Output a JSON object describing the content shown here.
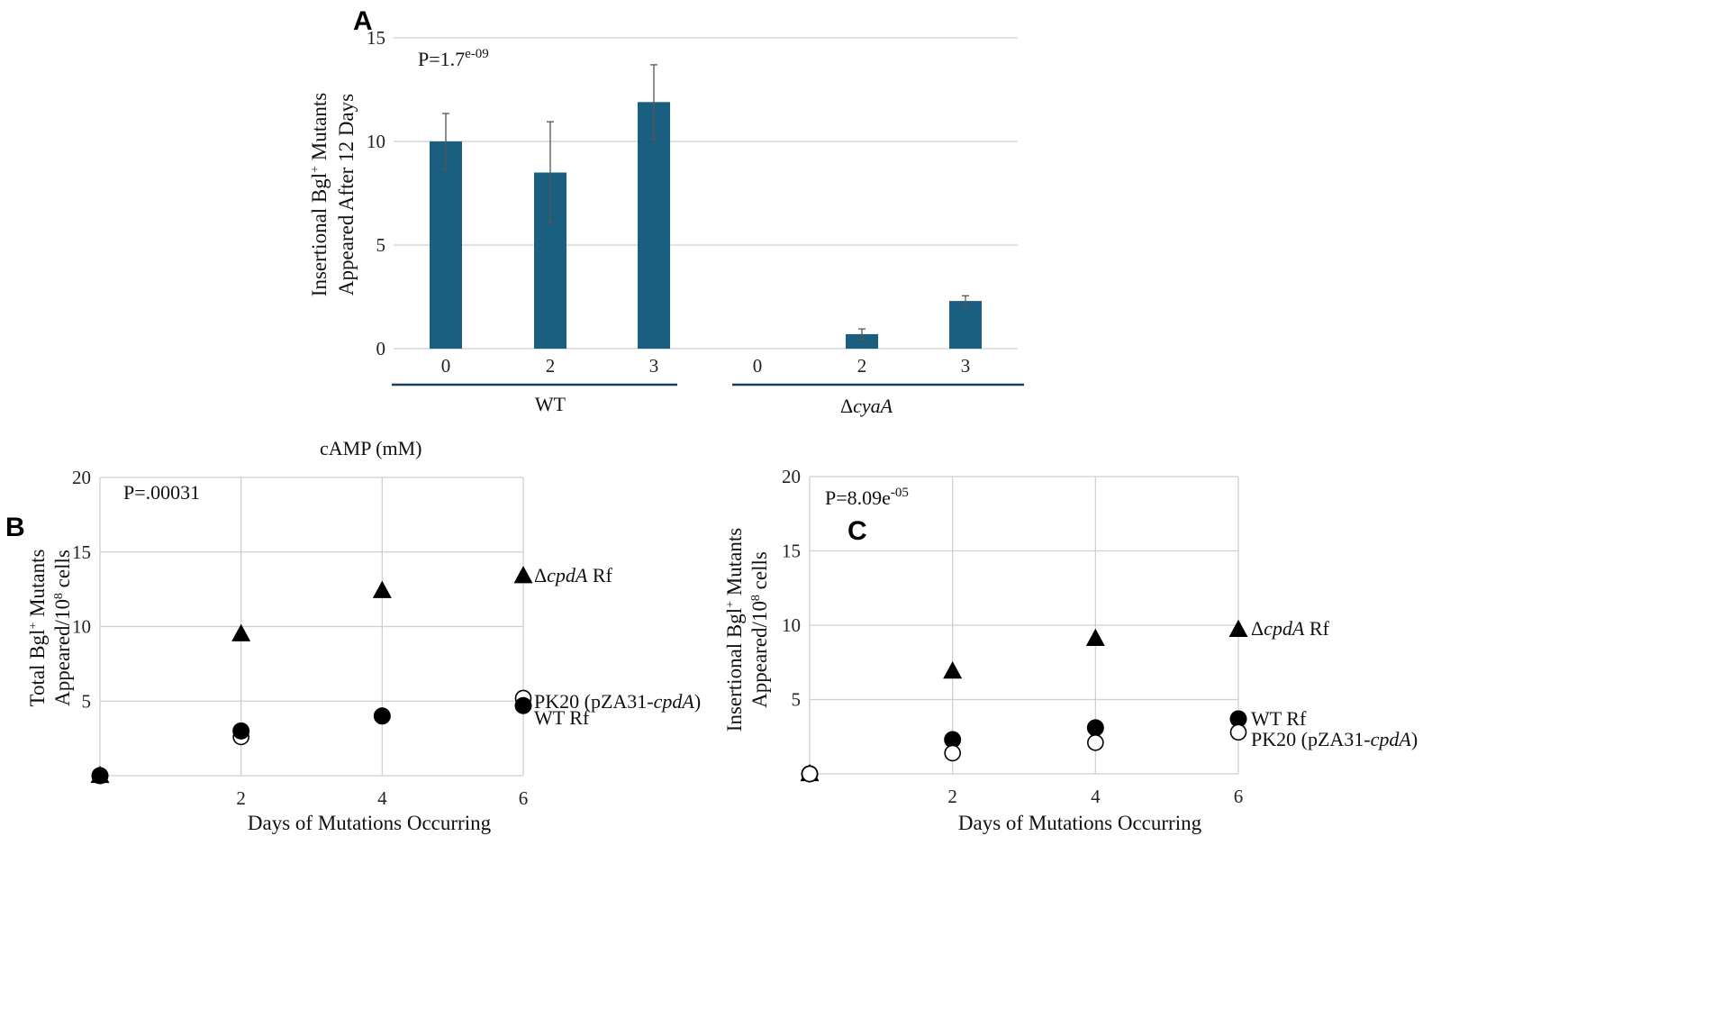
{
  "chart_data": [
    {
      "panel": "A",
      "type": "bar",
      "ylabel_line1": "Insertional Bgl",
      "ylabel_sup": "+",
      "ylabel_line1_rest": " Mutants",
      "ylabel_line2": "Appeared After 12 Days",
      "ylim": [
        0,
        15
      ],
      "yticks": [
        "0",
        "5",
        "10",
        "15"
      ],
      "xaxis_label": "cAMP (mM)",
      "p_value_base": "P=1.7",
      "p_value_exp": "e-09",
      "color": "#1b5f80",
      "groups": [
        {
          "label": "WT",
          "italic": false,
          "categories": [
            "0",
            "2",
            "3"
          ],
          "values": [
            10.0,
            8.5,
            11.9
          ],
          "errors": [
            1.35,
            2.45,
            1.8
          ]
        },
        {
          "label": "ΔcyaA",
          "label_prefix": "Δ",
          "label_italic": "cyaA",
          "categories": [
            "0",
            "2",
            "3"
          ],
          "values": [
            0.0,
            0.7,
            2.3
          ],
          "errors": [
            0.0,
            0.25,
            0.25
          ]
        }
      ]
    },
    {
      "panel": "B",
      "type": "scatter",
      "xlabel": "Days of Mutations Occurring",
      "ylabel_line1": "Total Bgl",
      "ylabel_sup": "+",
      "ylabel_line1_rest": " Mutants",
      "ylabel_line2_pre": "Appeared/10",
      "ylabel_line2_sup": "8",
      "ylabel_line2_post": " cells",
      "xlim": [
        0,
        6
      ],
      "ylim": [
        0,
        20
      ],
      "xticks": [
        "2",
        "4",
        "6"
      ],
      "yticks": [
        "5",
        "10",
        "15",
        "20"
      ],
      "p_value_base": "P=.00031",
      "p_value_exp": "",
      "series": [
        {
          "name": "ΔcpdA Rf",
          "name_prefix": "Δ",
          "name_italic": "cpdA",
          "name_suffix": " Rf",
          "marker": "triangle",
          "x": [
            0,
            2,
            4,
            6
          ],
          "y": [
            0,
            9.5,
            12.4,
            13.4
          ]
        },
        {
          "name": "PK20 (pZA31-cpdA)",
          "name_prefix": "PK20 (pZA31-",
          "name_italic": "cpdA",
          "name_suffix": ")",
          "marker": "circle-open",
          "x": [
            0,
            2,
            6
          ],
          "y": [
            0,
            2.6,
            5.2
          ]
        },
        {
          "name": "WT Rf",
          "name_prefix": "WT Rf",
          "name_italic": "",
          "name_suffix": "",
          "marker": "circle-filled",
          "x": [
            0,
            2,
            4,
            6
          ],
          "y": [
            0,
            3.0,
            4.0,
            4.7
          ]
        }
      ]
    },
    {
      "panel": "C",
      "type": "scatter",
      "xlabel": "Days of Mutations Occurring",
      "ylabel_line1": "Insertional Bgl",
      "ylabel_sup": "+",
      "ylabel_line1_rest": " Mutants",
      "ylabel_line2_pre": "Appeared/10",
      "ylabel_line2_sup": "8",
      "ylabel_line2_post": " cells",
      "xlim": [
        0,
        6
      ],
      "ylim": [
        0,
        20
      ],
      "xticks": [
        "2",
        "4",
        "6"
      ],
      "yticks": [
        "5",
        "10",
        "15",
        "20"
      ],
      "p_value_base": "P=8.09e",
      "p_value_exp": "-05",
      "series": [
        {
          "name": "ΔcpdA Rf",
          "name_prefix": "Δ",
          "name_italic": "cpdA",
          "name_suffix": " Rf",
          "marker": "triangle",
          "x": [
            0,
            2,
            4,
            6
          ],
          "y": [
            0,
            6.9,
            9.1,
            9.7
          ]
        },
        {
          "name": "WT Rf",
          "name_prefix": "WT Rf",
          "name_italic": "",
          "name_suffix": "",
          "marker": "circle-filled",
          "x": [
            0,
            2,
            4,
            6
          ],
          "y": [
            0,
            2.3,
            3.1,
            3.7
          ]
        },
        {
          "name": "PK20 (pZA31-cpdA)",
          "name_prefix": "PK20 (pZA31-",
          "name_italic": "cpdA",
          "name_suffix": ")",
          "marker": "circle-open",
          "x": [
            0,
            2,
            4,
            6
          ],
          "y": [
            0,
            1.4,
            2.1,
            2.8
          ]
        }
      ]
    }
  ]
}
